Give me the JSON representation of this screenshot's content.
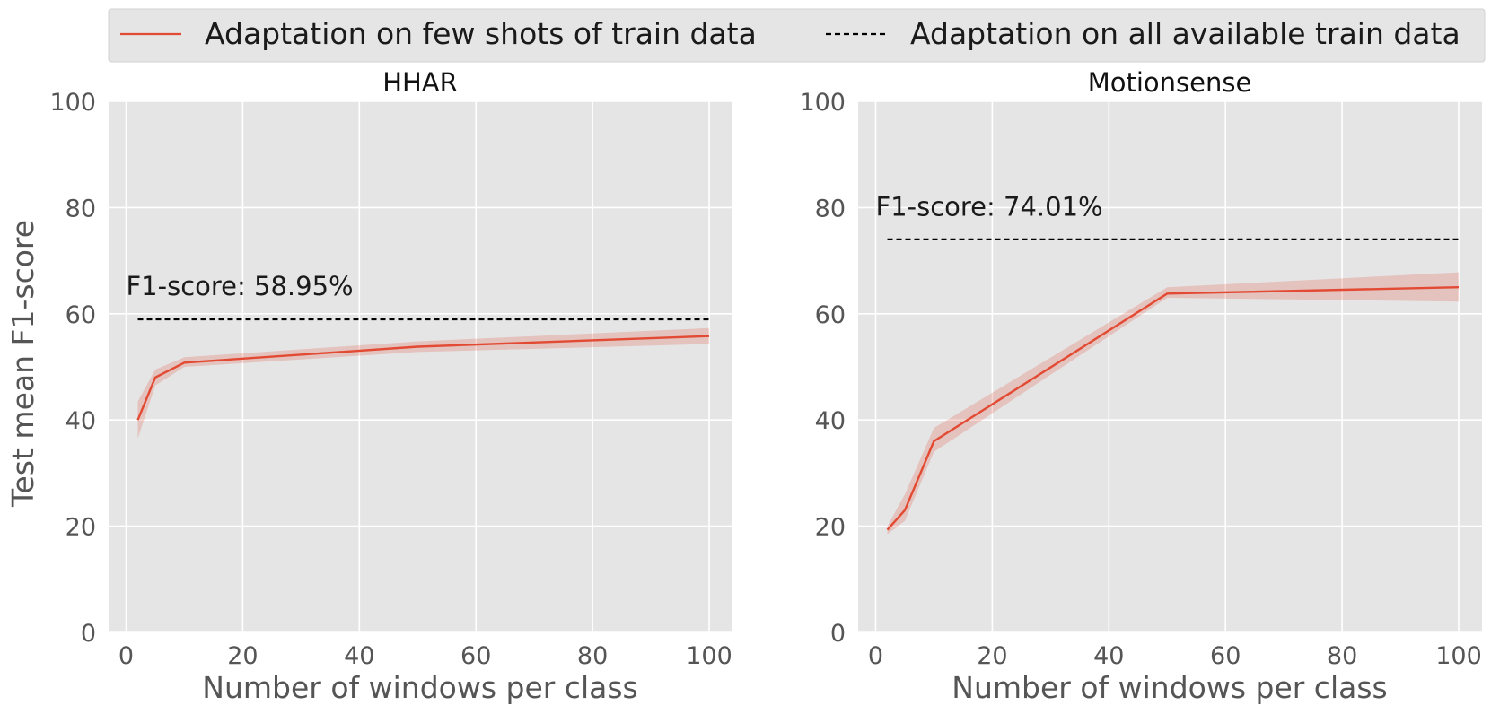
{
  "legend": {
    "few_shot_label": "Adaptation on few shots of train data",
    "all_data_label": "Adaptation on all available train data"
  },
  "colors": {
    "few_shot_line": "#e24a33",
    "few_shot_band": "#e24a33",
    "reference_line": "#000000",
    "plot_bg": "#e5e5e5",
    "grid": "#ffffff"
  },
  "y_axis_label": "Test mean F1-score",
  "chart_data": [
    {
      "type": "line",
      "title": "HHAR",
      "xlabel": "Number of windows per class",
      "ylabel": "Test mean F1-score",
      "xlim": [
        -3,
        104
      ],
      "ylim": [
        0,
        100
      ],
      "x_ticks": [
        0,
        20,
        40,
        60,
        80,
        100
      ],
      "y_ticks": [
        0,
        20,
        40,
        60,
        80,
        100
      ],
      "grid": true,
      "series": [
        {
          "name": "Adaptation on few shots of train data",
          "x": [
            2,
            5,
            10,
            50,
            100
          ],
          "values": [
            40.0,
            48.0,
            50.8,
            53.8,
            55.8
          ],
          "lower": [
            36.5,
            46.5,
            50.0,
            52.8,
            54.3
          ],
          "upper": [
            43.5,
            49.5,
            51.8,
            54.8,
            57.3
          ]
        },
        {
          "name": "Adaptation on all available train data",
          "x": [
            2,
            100
          ],
          "values": [
            58.95,
            58.95
          ],
          "style": "dashed"
        }
      ],
      "annotation": {
        "text": "F1-score: 58.95%",
        "x": 0,
        "y": 63.5
      }
    },
    {
      "type": "line",
      "title": "Motionsense",
      "xlabel": "Number of windows per class",
      "ylabel": "",
      "xlim": [
        -3,
        104
      ],
      "ylim": [
        0,
        100
      ],
      "x_ticks": [
        0,
        20,
        40,
        60,
        80,
        100
      ],
      "y_ticks": [
        0,
        20,
        40,
        60,
        80,
        100
      ],
      "grid": true,
      "series": [
        {
          "name": "Adaptation on few shots of train data",
          "x": [
            2,
            5,
            10,
            50,
            100
          ],
          "values": [
            19.3,
            23.0,
            36.0,
            63.8,
            65.0
          ],
          "lower": [
            18.5,
            21.0,
            34.0,
            63.0,
            62.3
          ],
          "upper": [
            20.0,
            26.0,
            38.5,
            65.0,
            67.8
          ]
        },
        {
          "name": "Adaptation on all available train data",
          "x": [
            2,
            100
          ],
          "values": [
            74.01,
            74.01
          ],
          "style": "dashed"
        }
      ],
      "annotation": {
        "text": "F1-score: 74.01%",
        "x": 0,
        "y": 78.5
      }
    }
  ]
}
